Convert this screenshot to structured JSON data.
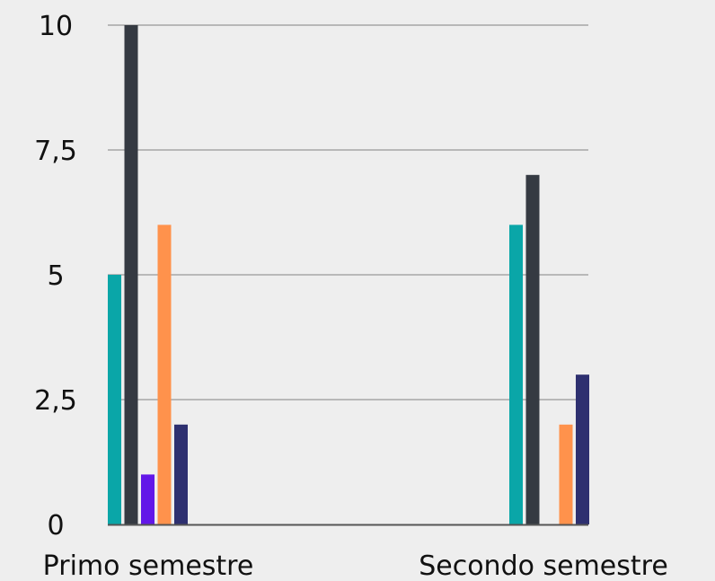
{
  "chart_data": {
    "type": "bar",
    "categories": [
      "Primo semestre",
      "Secondo semestre"
    ],
    "series": [
      {
        "values": [
          5,
          6
        ],
        "color": "#0aa6a8"
      },
      {
        "values": [
          10,
          7
        ],
        "color": "#353a42"
      },
      {
        "values": [
          1,
          0
        ],
        "color": "#6217e8"
      },
      {
        "values": [
          6,
          2
        ],
        "color": "#ff924c"
      },
      {
        "values": [
          2,
          3
        ],
        "color": "#2e3070"
      }
    ],
    "y_ticks": [
      "0",
      "2,5",
      "5",
      "7,5",
      "10"
    ],
    "ylim": [
      0,
      10
    ],
    "grid": true,
    "legend": "none",
    "colors": {
      "background": "#eeeeee",
      "grid": "#b8b8b8",
      "axis": "#555555",
      "text": "#111111"
    }
  }
}
